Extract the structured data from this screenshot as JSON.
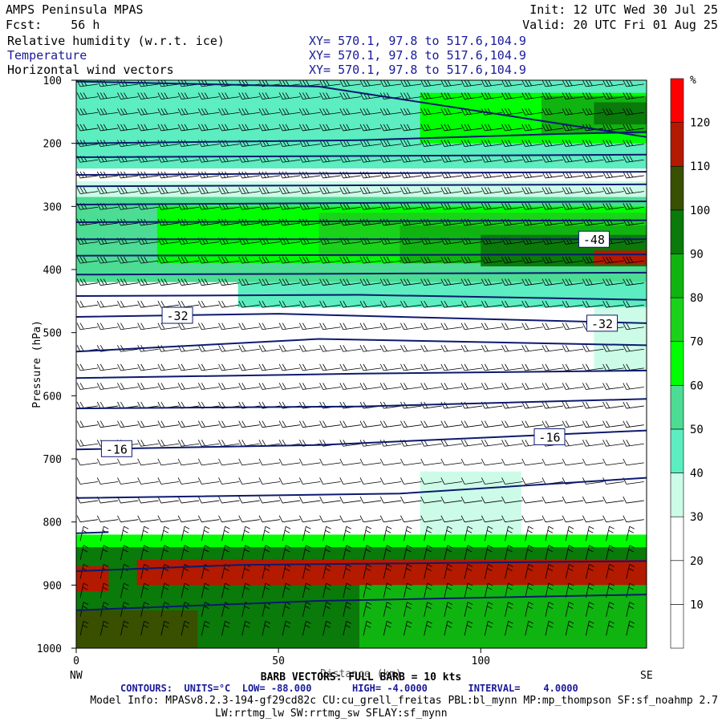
{
  "header": {
    "model_name": "AMPS Peninsula MPAS",
    "forecast": "Fcst:    56 h",
    "init": "Init: 12 UTC Wed 30 Jul 25",
    "valid": "Valid: 20 UTC Fri 01 Aug 25",
    "fields": [
      {
        "label": "Relative humidity (w.r.t. ice)",
        "xy": "XY= 570.1, 97.8 to 517.6,104.9",
        "color": "#000000"
      },
      {
        "label": "Temperature",
        "xy": "XY= 570.1, 97.8 to 517.6,104.9",
        "color": "#1a1a9a"
      },
      {
        "label": "Horizontal wind vectors",
        "xy": "XY= 570.1, 97.8 to 517.6,104.9",
        "color": "#000000"
      }
    ]
  },
  "footer": {
    "barb_line": "BARB VECTORS: FULL BARB = 10 kts",
    "axis_title_overlap": "Distance (km)",
    "contours_line": "CONTOURS:  UNITS=°C  LOW= -88.000       HIGH= -4.0000       INTERVAL=    4.0000",
    "model_info": "Model Info: MPASv8.2.3-194-gf29cd82c CU:cu_grell_freitas PBL:bl_mynn MP:mp_thompson SF:sf_noahmp 2.7",
    "model_info_2": "LW:rrtmg_lw SW:rrtmg_sw SFLAY:sf_mynn"
  },
  "colors": {
    "temperature_contour": "#0d1a6e",
    "frame": "#000000",
    "barb": "#000000"
  },
  "chart_data": {
    "type": "heatmap",
    "title": "Relative humidity (w.r.t. ice)",
    "xlabel": "Distance (km)",
    "ylabel": "Pressure (hPa)",
    "xlim": [
      0,
      141
    ],
    "ylim": [
      1000,
      100
    ],
    "x_ticks": [
      0,
      50,
      100
    ],
    "y_ticks": [
      100,
      200,
      300,
      400,
      500,
      600,
      700,
      800,
      900,
      1000
    ],
    "x_end_labels": {
      "left": "NW",
      "right": "SE"
    },
    "colorbar": {
      "unit": "%",
      "levels": [
        0,
        10,
        20,
        30,
        40,
        50,
        60,
        70,
        80,
        90,
        100,
        110,
        120,
        130
      ],
      "tick_labels": [
        "10",
        "20",
        "30",
        "40",
        "50",
        "60",
        "70",
        "80",
        "90",
        "100",
        "110",
        "120"
      ],
      "colors": [
        "#ffffff",
        "#ffffff",
        "#ffffff",
        "#ccfce8",
        "#5cedc0",
        "#4cdc94",
        "#00ff00",
        "#1ad21a",
        "#10b410",
        "#0a7a0a",
        "#385000",
        "#b41a00",
        "#ff0000"
      ]
    },
    "rh_regions": [
      {
        "p_top": 100,
        "p_bot": 240,
        "x0": 0,
        "x1": 141,
        "rh": 45
      },
      {
        "p_top": 120,
        "p_bot": 200,
        "x0": 85,
        "x1": 141,
        "rh": 65
      },
      {
        "p_top": 125,
        "p_bot": 185,
        "x0": 115,
        "x1": 141,
        "rh": 85
      },
      {
        "p_top": 135,
        "p_bot": 170,
        "x0": 128,
        "x1": 141,
        "rh": 95
      },
      {
        "p_top": 240,
        "p_bot": 260,
        "x0": 10,
        "x1": 130,
        "rh": 15
      },
      {
        "p_top": 260,
        "p_bot": 290,
        "x0": 0,
        "x1": 141,
        "rh": 35
      },
      {
        "p_top": 285,
        "p_bot": 420,
        "x0": 0,
        "x1": 141,
        "rh": 55
      },
      {
        "p_top": 300,
        "p_bot": 390,
        "x0": 20,
        "x1": 141,
        "rh": 65
      },
      {
        "p_top": 310,
        "p_bot": 380,
        "x0": 60,
        "x1": 141,
        "rh": 75
      },
      {
        "p_top": 330,
        "p_bot": 390,
        "x0": 80,
        "x1": 141,
        "rh": 85
      },
      {
        "p_top": 345,
        "p_bot": 395,
        "x0": 100,
        "x1": 141,
        "rh": 95
      },
      {
        "p_top": 370,
        "p_bot": 392,
        "x0": 128,
        "x1": 141,
        "rh": 115
      },
      {
        "p_top": 420,
        "p_bot": 460,
        "x0": 40,
        "x1": 141,
        "rh": 45
      },
      {
        "p_top": 460,
        "p_bot": 560,
        "x0": 128,
        "x1": 141,
        "rh": 35
      },
      {
        "p_top": 720,
        "p_bot": 820,
        "x0": 85,
        "x1": 110,
        "rh": 35
      },
      {
        "p_top": 820,
        "p_bot": 850,
        "x0": 0,
        "x1": 141,
        "rh": 65
      },
      {
        "p_top": 840,
        "p_bot": 1000,
        "x0": 0,
        "x1": 141,
        "rh": 95
      },
      {
        "p_top": 860,
        "p_bot": 900,
        "x0": 15,
        "x1": 141,
        "rh": 115
      },
      {
        "p_top": 870,
        "p_bot": 910,
        "x0": 0,
        "x1": 8,
        "rh": 115
      },
      {
        "p_top": 900,
        "p_bot": 1000,
        "x0": 70,
        "x1": 141,
        "rh": 85
      },
      {
        "p_top": 940,
        "p_bot": 1000,
        "x0": 0,
        "x1": 30,
        "rh": 105
      }
    ],
    "temperature_contours": [
      {
        "x": [
          0,
          60,
          141
        ],
        "p": [
          102,
          110,
          190
        ]
      },
      {
        "x": [
          0,
          70,
          120,
          141
        ],
        "p": [
          200,
          195,
          185,
          182
        ]
      },
      {
        "x": [
          0,
          141
        ],
        "p": [
          222,
          218
        ]
      },
      {
        "x": [
          0,
          141
        ],
        "p": [
          250,
          245
        ]
      },
      {
        "x": [
          0,
          141
        ],
        "p": [
          268,
          265
        ]
      },
      {
        "x": [
          0,
          141
        ],
        "p": [
          297,
          292
        ]
      },
      {
        "x": [
          0,
          141
        ],
        "p": [
          325,
          322
        ]
      },
      {
        "x": [
          0,
          141
        ],
        "p": [
          352,
          352
        ],
        "label": "-48",
        "label_x": 128
      },
      {
        "x": [
          0,
          141
        ],
        "p": [
          378,
          376
        ]
      },
      {
        "x": [
          0,
          141
        ],
        "p": [
          408,
          405
        ]
      },
      {
        "x": [
          0,
          70,
          141
        ],
        "p": [
          442,
          440,
          448
        ]
      },
      {
        "x": [
          0,
          50,
          141
        ],
        "p": [
          475,
          470,
          485
        ],
        "label": "-32",
        "label_x": 25
      },
      {
        "x": [
          0,
          60,
          141
        ],
        "p": [
          530,
          510,
          520
        ]
      },
      {
        "x": [
          0,
          70,
          141
        ],
        "p": [
          572,
          565,
          560
        ]
      },
      {
        "x": [
          0,
          70,
          141
        ],
        "p": [
          620,
          617,
          605
        ]
      },
      {
        "x": [
          0,
          60,
          141
        ],
        "p": [
          685,
          678,
          655
        ],
        "label": "-16",
        "label_x": 10
      },
      {
        "x": [
          0,
          80,
          141
        ],
        "p": [
          762,
          755,
          730
        ]
      },
      {
        "x": [
          0,
          8
        ],
        "p": [
          818,
          816
        ]
      },
      {
        "x": [
          0,
          40,
          141
        ],
        "p": [
          878,
          868,
          862
        ]
      },
      {
        "x": [
          0,
          60,
          141
        ],
        "p": [
          940,
          925,
          915
        ]
      }
    ],
    "extra_contour_labels": [
      {
        "text": "-32",
        "x": 130,
        "p": 485
      },
      {
        "text": "-16",
        "x": 117,
        "p": 665
      }
    ],
    "wind_barbs": {
      "levels_hpa": [
        110,
        130,
        155,
        180,
        205,
        230,
        255,
        280,
        305,
        330,
        360,
        390,
        425,
        460,
        495,
        530,
        560,
        590,
        620,
        650,
        680,
        710,
        740,
        770,
        800,
        830,
        860,
        890,
        920,
        950,
        980
      ],
      "x_spacing_km": 5
    }
  }
}
